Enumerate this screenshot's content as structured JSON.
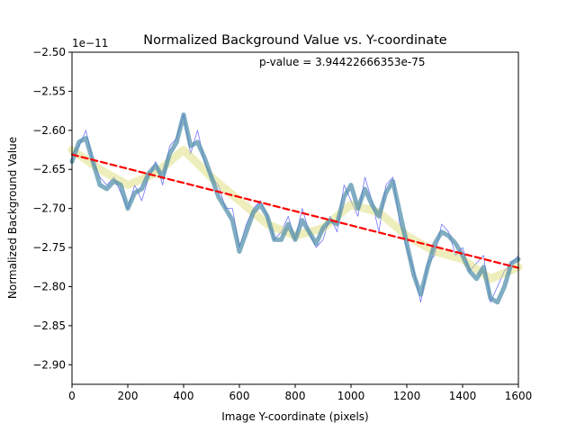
{
  "chart_data": {
    "type": "line",
    "title": "Normalized Background Value vs. Y-coordinate",
    "xlabel": "Image Y-coordinate (pixels)",
    "ylabel": "Normalized Background Value",
    "y_scale_note": "1e−11",
    "annotation": "p-value = 3.94422666353e-75",
    "xlim": [
      0,
      1600
    ],
    "ylim": [
      -2.925,
      -2.5
    ],
    "x_ticks": [
      0,
      200,
      400,
      600,
      800,
      1000,
      1200,
      1400,
      1600
    ],
    "y_ticks": [
      -2.5,
      -2.55,
      -2.6,
      -2.65,
      -2.7,
      -2.75,
      -2.8,
      -2.85,
      -2.9
    ],
    "grid": false,
    "series": [
      {
        "color": "#0000ff",
        "style": "thin-noisy",
        "x": [
          0,
          25,
          50,
          75,
          100,
          125,
          150,
          175,
          200,
          225,
          250,
          275,
          300,
          325,
          350,
          375,
          400,
          425,
          450,
          475,
          500,
          525,
          550,
          575,
          600,
          625,
          650,
          675,
          700,
          725,
          750,
          775,
          800,
          825,
          850,
          875,
          900,
          925,
          950,
          975,
          1000,
          1025,
          1050,
          1075,
          1100,
          1125,
          1150,
          1175,
          1200,
          1225,
          1250,
          1275,
          1300,
          1325,
          1350,
          1375,
          1400,
          1425,
          1450,
          1475,
          1500,
          1525,
          1550,
          1575,
          1600
        ],
        "y": [
          -2.63,
          -2.62,
          -2.6,
          -2.64,
          -2.66,
          -2.67,
          -2.66,
          -2.68,
          -2.7,
          -2.67,
          -2.69,
          -2.66,
          -2.64,
          -2.67,
          -2.62,
          -2.61,
          -2.58,
          -2.63,
          -2.6,
          -2.64,
          -2.66,
          -2.67,
          -2.7,
          -2.7,
          -2.75,
          -2.72,
          -2.7,
          -2.69,
          -2.71,
          -2.74,
          -2.73,
          -2.71,
          -2.74,
          -2.7,
          -2.73,
          -2.75,
          -2.74,
          -2.71,
          -2.73,
          -2.67,
          -2.69,
          -2.71,
          -2.66,
          -2.69,
          -2.73,
          -2.67,
          -2.66,
          -2.72,
          -2.75,
          -2.78,
          -2.82,
          -2.77,
          -2.76,
          -2.72,
          -2.73,
          -2.76,
          -2.75,
          -2.78,
          -2.77,
          -2.76,
          -2.82,
          -2.8,
          -2.78,
          -2.77,
          -2.76
        ]
      },
      {
        "color": "#d9d96a",
        "style": "thick-band",
        "x": [
          0,
          100,
          200,
          300,
          400,
          500,
          600,
          700,
          800,
          900,
          1000,
          1100,
          1200,
          1300,
          1400,
          1500,
          1600
        ],
        "y": [
          -2.625,
          -2.65,
          -2.67,
          -2.655,
          -2.625,
          -2.66,
          -2.69,
          -2.72,
          -2.735,
          -2.725,
          -2.695,
          -2.705,
          -2.735,
          -2.755,
          -2.765,
          -2.79,
          -2.775
        ]
      },
      {
        "color": "#4a8aa8",
        "style": "thick-smoothed",
        "x": [
          0,
          25,
          50,
          75,
          100,
          125,
          150,
          175,
          200,
          225,
          250,
          275,
          300,
          325,
          350,
          375,
          400,
          425,
          450,
          475,
          500,
          525,
          550,
          575,
          600,
          625,
          650,
          675,
          700,
          725,
          750,
          775,
          800,
          825,
          850,
          875,
          900,
          925,
          950,
          975,
          1000,
          1025,
          1050,
          1075,
          1100,
          1125,
          1150,
          1175,
          1200,
          1225,
          1250,
          1275,
          1300,
          1325,
          1350,
          1375,
          1400,
          1425,
          1450,
          1475,
          1500,
          1525,
          1550,
          1575,
          1600
        ],
        "y": [
          -2.64,
          -2.615,
          -2.61,
          -2.64,
          -2.67,
          -2.675,
          -2.665,
          -2.67,
          -2.7,
          -2.68,
          -2.675,
          -2.655,
          -2.645,
          -2.66,
          -2.63,
          -2.615,
          -2.58,
          -2.62,
          -2.615,
          -2.635,
          -2.66,
          -2.685,
          -2.7,
          -2.715,
          -2.755,
          -2.73,
          -2.705,
          -2.695,
          -2.71,
          -2.74,
          -2.74,
          -2.72,
          -2.74,
          -2.715,
          -2.73,
          -2.745,
          -2.725,
          -2.715,
          -2.72,
          -2.685,
          -2.67,
          -2.7,
          -2.675,
          -2.695,
          -2.71,
          -2.68,
          -2.665,
          -2.705,
          -2.745,
          -2.785,
          -2.81,
          -2.775,
          -2.745,
          -2.73,
          -2.735,
          -2.745,
          -2.76,
          -2.78,
          -2.79,
          -2.775,
          -2.815,
          -2.82,
          -2.8,
          -2.77,
          -2.765
        ]
      },
      {
        "color": "#ff0000",
        "style": "dashed-fit",
        "x": [
          0,
          1600
        ],
        "y": [
          -2.631,
          -2.776
        ]
      }
    ]
  }
}
